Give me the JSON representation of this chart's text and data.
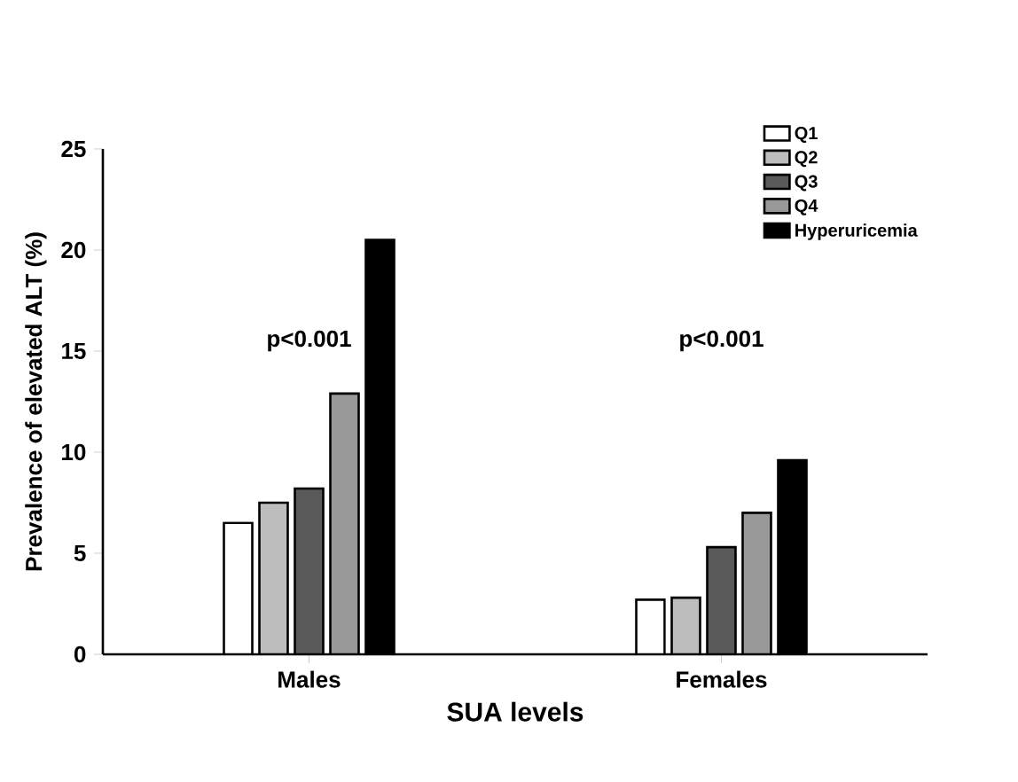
{
  "chart_data": {
    "type": "bar",
    "xlabel": "SUA levels",
    "ylabel": "Prevalence of elevated ALT (%)",
    "categories": [
      "Males",
      "Females"
    ],
    "series": [
      {
        "name": "Q1",
        "color": "#ffffff",
        "values": [
          6.5,
          2.7
        ]
      },
      {
        "name": "Q2",
        "color": "#bdbdbd",
        "values": [
          7.5,
          2.8
        ]
      },
      {
        "name": "Q3",
        "color": "#5a5a5a",
        "values": [
          8.2,
          5.3
        ]
      },
      {
        "name": "Q4",
        "color": "#999999",
        "values": [
          12.9,
          7.0
        ]
      },
      {
        "name": "Hyperuricemia",
        "color": "#000000",
        "values": [
          20.5,
          9.6
        ]
      }
    ],
    "ylim": [
      0,
      25
    ],
    "yticks": [
      0,
      5,
      10,
      15,
      20,
      25
    ],
    "legend": "top right",
    "grid": false,
    "annotations": [
      "p<0.001",
      "p<0.001"
    ]
  }
}
